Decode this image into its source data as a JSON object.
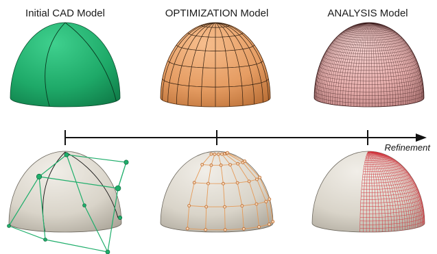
{
  "titles": {
    "cad": "Initial CAD Model",
    "optimization": "OPTIMIZATION Model",
    "analysis": "ANALYSIS Model"
  },
  "axis": {
    "label": "Refinement"
  },
  "colors": {
    "cad_surface": "#1fae6b",
    "optimization_surface": "#e8a06a",
    "analysis_surface": "#eab6b4",
    "dome_neutral": "#dcd7cc",
    "control_net": "#1fae6b",
    "optimization_net": "#e59a57",
    "analysis_mesh": "#d0343d"
  }
}
